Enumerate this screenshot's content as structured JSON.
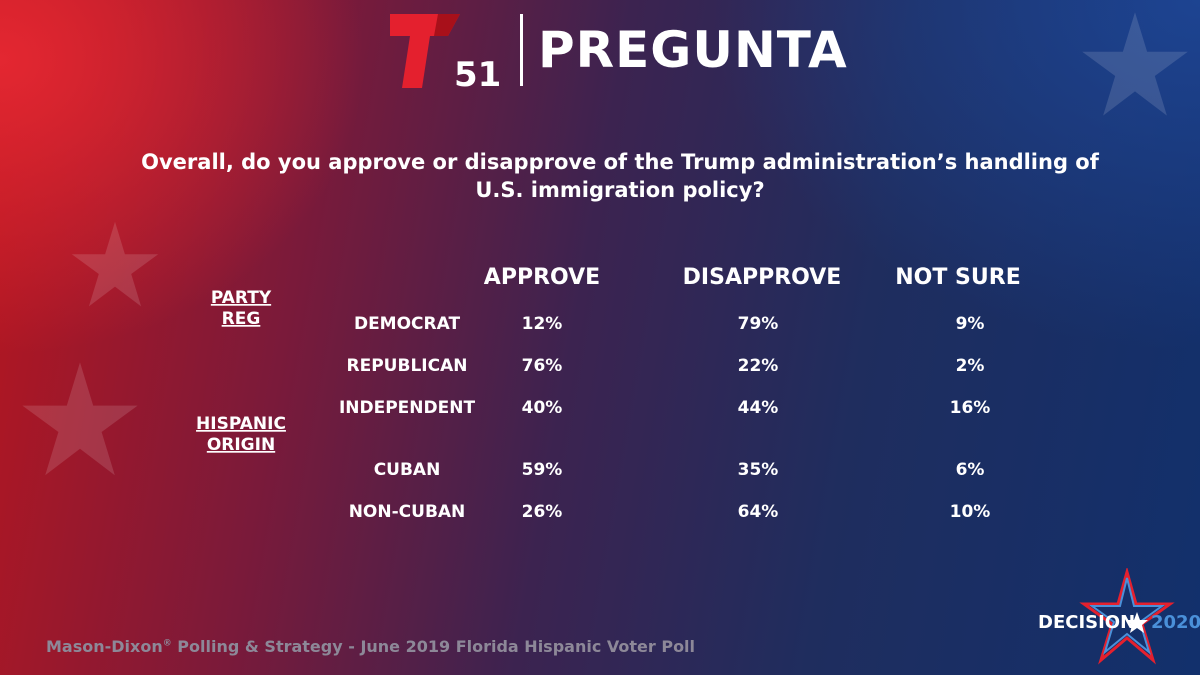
{
  "brand": {
    "number": "51",
    "title": "PREGUNTA"
  },
  "question": "Overall, do you approve or disapprove of the Trump administration’s handling of U.S. immigration policy?",
  "footer": {
    "source": "Mason-Dixon",
    "reg_mark": "®",
    "rest": " Polling & Strategy - June 2019 Florida Hispanic Voter Poll"
  },
  "decision_logo": {
    "word": "DECISION",
    "year": "2020"
  },
  "colors": {
    "red": "#e4202e",
    "blue": "#4a90d9",
    "footer_gray": "#8d8898"
  },
  "chart_data": {
    "type": "table",
    "columns": [
      "APPROVE",
      "DISAPPROVE",
      "NOT SURE"
    ],
    "groups": [
      {
        "label": "PARTY REG",
        "label_lines": [
          "PARTY",
          "REG"
        ],
        "rows": [
          "DEMOCRAT",
          "REPUBLICAN",
          "INDEPENDENT"
        ]
      },
      {
        "label": "HISPANIC ORIGIN",
        "label_lines": [
          "HISPANIC",
          "ORIGIN"
        ],
        "rows": [
          "CUBAN",
          "NON-CUBAN"
        ]
      }
    ],
    "rows": [
      {
        "label": "DEMOCRAT",
        "values": [
          "12%",
          "79%",
          "9%"
        ]
      },
      {
        "label": "REPUBLICAN",
        "values": [
          "76%",
          "22%",
          "2%"
        ]
      },
      {
        "label": "INDEPENDENT",
        "values": [
          "40%",
          "44%",
          "16%"
        ]
      },
      {
        "label": "CUBAN",
        "values": [
          "59%",
          "35%",
          "6%"
        ]
      },
      {
        "label": "NON-CUBAN",
        "values": [
          "26%",
          "64%",
          "10%"
        ]
      }
    ]
  }
}
